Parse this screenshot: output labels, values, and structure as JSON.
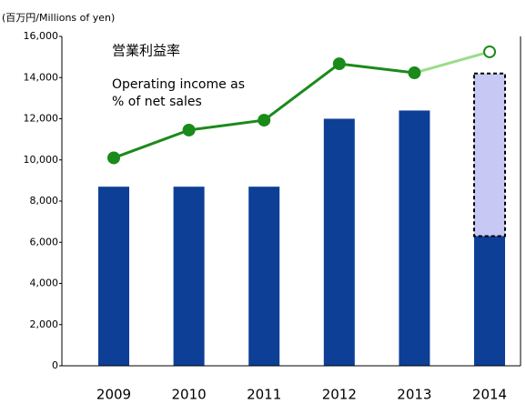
{
  "chart_data": {
    "type": "bar",
    "unit_label": "(百万円/Millions of yen)",
    "annotations": [
      "営業利益率",
      "Operating income as",
      "% of net sales"
    ],
    "categories": [
      "2009",
      "2010",
      "2011",
      "2012",
      "2013",
      "2014"
    ],
    "series": [
      {
        "type": "bar",
        "color": "#0d3f96",
        "values": [
          8700,
          8700,
          8700,
          12000,
          12400,
          6300
        ]
      },
      {
        "type": "bar",
        "color": "#c8c8f5",
        "dashed": true,
        "values": [
          null,
          null,
          null,
          null,
          null,
          7900
        ]
      },
      {
        "type": "line",
        "color": "#1a8a1a",
        "forecast_color": "#99dd88",
        "values": [
          10100,
          11450,
          11930,
          14670,
          14230,
          15250
        ]
      }
    ],
    "ylim": [
      0,
      16000
    ],
    "yticks": [
      0,
      {
        "value": 2000,
        "label": "2,000"
      },
      {
        "value": 4000,
        "label": "4,000"
      },
      {
        "value": 6000,
        "label": "6,000"
      },
      {
        "value": 8000,
        "label": "8,000"
      },
      {
        "value": 10000,
        "label": "10,000"
      },
      {
        "value": 12000,
        "label": "12,000"
      },
      {
        "value": 14000,
        "label": "14,000"
      },
      {
        "value": 16000,
        "label": "16,000"
      }
    ]
  }
}
